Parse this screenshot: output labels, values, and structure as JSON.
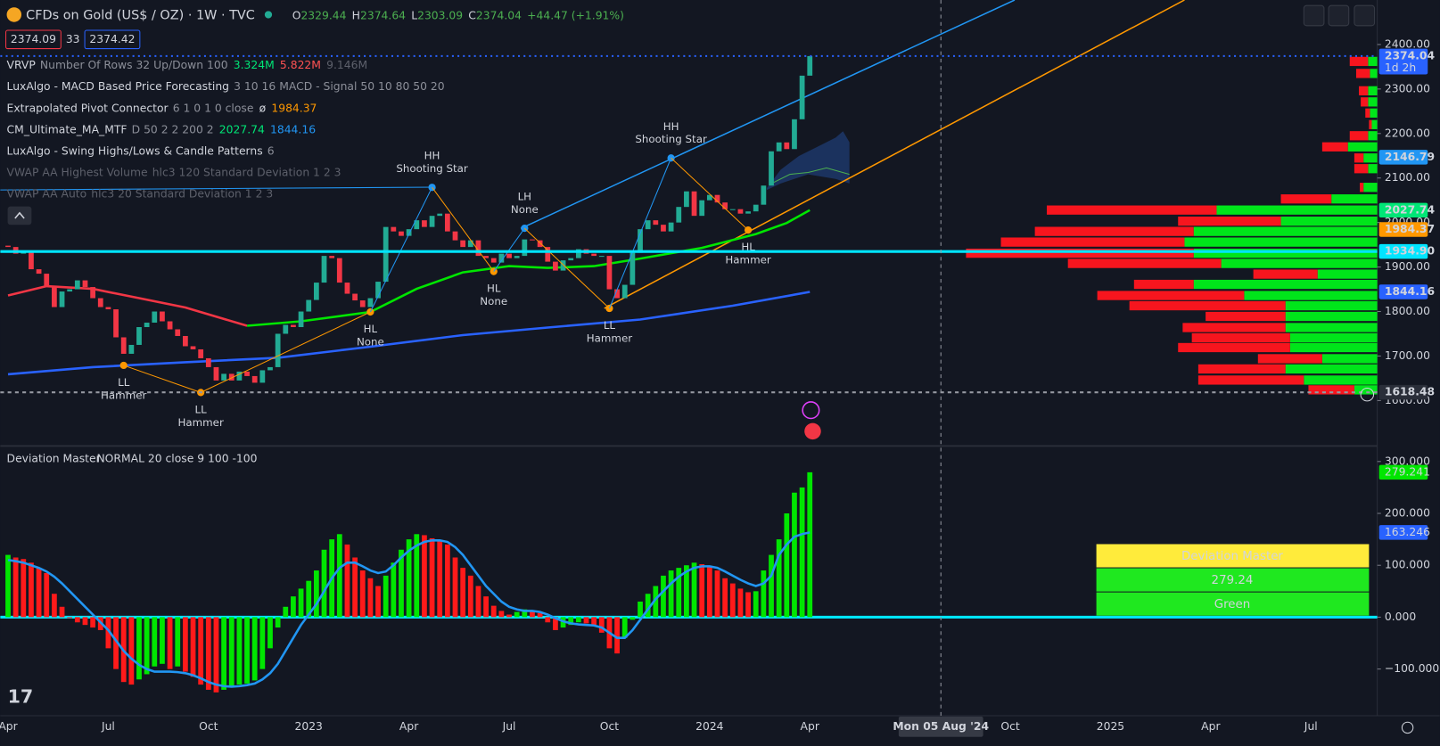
{
  "header": {
    "symbol": "CFDs on Gold (US$ / OZ) · 1W · TVC",
    "ohlc": [
      {
        "label": "O",
        "value": 2329.44
      },
      {
        "label": "H",
        "value": 2374.64
      },
      {
        "label": "L",
        "value": 2303.09
      },
      {
        "label": "C",
        "value": 2374.04
      }
    ],
    "change": "+44.47 (+1.91%)",
    "sell": 2374.09,
    "spread": 33,
    "buy": 2374.42
  },
  "legends": [
    {
      "name": "VRVP",
      "params": "Number Of Rows 32 Up/Down 100",
      "values": [
        {
          "text": "3.324M",
          "color": "#00e676"
        },
        {
          "text": "5.822M",
          "color": "#ff5252"
        },
        {
          "text": "9.146M",
          "color": "#5d606b"
        }
      ]
    },
    {
      "name": "LuxAlgo - MACD Based Price Forecasting",
      "params": "3 10 16 MACD - Signal 50 10 80 50 20",
      "values": []
    },
    {
      "name": "Extrapolated Pivot Connector",
      "params": "6 1 0 1 0 close",
      "values": [
        {
          "text": "ø",
          "color": "#d1d4dc"
        },
        {
          "text": "1984.37",
          "color": "#ff9800"
        }
      ]
    },
    {
      "name": "CM_Ultimate_MA_MTF",
      "params": "D 50 2 2 200 2",
      "values": [
        {
          "text": "2027.74",
          "color": "#00e676"
        },
        {
          "text": "1844.16",
          "color": "#2196f3"
        }
      ]
    },
    {
      "name": "LuxAlgo - Swing Highs/Lows & Candle Patterns",
      "params": "6",
      "values": []
    },
    {
      "name": "VWAP AA Highest Volume",
      "params": "hlc3 120 Standard Deviation 1 2 3",
      "values": [],
      "dimmed": true
    },
    {
      "name": "VWAP AA Auto",
      "params": "hlc3 20 Standard Deviation 1 2 3",
      "values": [],
      "dimmed": true
    }
  ],
  "price_chart": {
    "type": "candlestick",
    "ylim": [
      1500,
      2500
    ],
    "yticks": [
      {
        "value": 2400,
        "label": "2400.00"
      },
      {
        "value": 2300,
        "label": "2300.00"
      },
      {
        "value": 2200,
        "label": "2200.00"
      },
      {
        "value": 2100,
        "label": "2100.00"
      },
      {
        "value": 2000,
        "label": "2000.00"
      },
      {
        "value": 1900,
        "label": "1900.00"
      },
      {
        "value": 1800,
        "label": "1800.00"
      },
      {
        "value": 1700,
        "label": "1700.00"
      },
      {
        "value": 1600,
        "label": "1600.00"
      }
    ],
    "up_color": "#22ab94",
    "down_color": "#f23645",
    "first_open": 1948,
    "closes": [
      1945,
      1930,
      1935,
      1895,
      1885,
      1858,
      1810,
      1845,
      1850,
      1870,
      1855,
      1830,
      1810,
      1805,
      1742,
      1705,
      1725,
      1765,
      1775,
      1800,
      1778,
      1760,
      1745,
      1722,
      1715,
      1695,
      1675,
      1645,
      1660,
      1645,
      1665,
      1655,
      1640,
      1668,
      1675,
      1750,
      1770,
      1765,
      1800,
      1826,
      1865,
      1925,
      1920,
      1865,
      1840,
      1825,
      1810,
      1830,
      1867,
      1990,
      1980,
      1970,
      1985,
      2005,
      1990,
      2015,
      2020,
      1980,
      1960,
      1945,
      1960,
      1925,
      1920,
      1910,
      1930,
      1920,
      1925,
      1962,
      1960,
      1945,
      1912,
      1892,
      1915,
      1920,
      1940,
      1930,
      1925,
      1925,
      1850,
      1830,
      1860,
      1932,
      1985,
      2005,
      1995,
      1980,
      2000,
      2035,
      2070,
      2015,
      2050,
      2062,
      2045,
      2030,
      2030,
      2020,
      2025,
      2040,
      2083,
      2160,
      2180,
      2165,
      2232,
      2330,
      2374
    ],
    "ma_lines": [
      {
        "color": "#f23645",
        "x": [
          0,
          5,
          11,
          17,
          23,
          31
        ],
        "values": [
          1836,
          1857,
          1851,
          1830,
          1809,
          1768
        ]
      },
      {
        "color": "#00e600",
        "x": [
          31,
          38,
          47,
          53,
          59,
          65,
          70,
          76,
          82,
          90,
          97,
          101,
          104
        ],
        "values": [
          1768,
          1778,
          1799,
          1851,
          1888,
          1902,
          1898,
          1902,
          1919,
          1943,
          1974,
          1999,
          2027.74
        ]
      },
      {
        "color": "#2962ff",
        "x": [
          0,
          11,
          23,
          35,
          47,
          59,
          70,
          82,
          94,
          104
        ],
        "values": [
          1659,
          1675,
          1686,
          1696,
          1721,
          1747,
          1764,
          1782,
          1813,
          1844.16
        ]
      }
    ],
    "pivots": [
      {
        "x": 15,
        "value": 1679,
        "label": "LL",
        "pattern": "Hammer",
        "position": "below",
        "color": "#ff9800",
        "text_color": "#ffffff"
      },
      {
        "x": 25,
        "value": 1618,
        "label": "LL",
        "pattern": "Hammer",
        "position": "below",
        "color": "#ff9800",
        "text_color": "#ffffff"
      },
      {
        "x": 47,
        "value": 1799,
        "label": "HL",
        "pattern": "None",
        "position": "below",
        "color": "#ff9800",
        "text_color": "#ffffff"
      },
      {
        "x": 55,
        "value": 2079,
        "label": "HH",
        "pattern": "Shooting Star",
        "position": "above",
        "color": "#2196f3",
        "text_color": "#ffd54f"
      },
      {
        "x": 63,
        "value": 1890,
        "label": "HL",
        "pattern": "None",
        "position": "below",
        "color": "#ff9800",
        "text_color": "#ffffff"
      },
      {
        "x": 67,
        "value": 1987,
        "label": "LH",
        "pattern": "None",
        "position": "above",
        "color": "#2196f3",
        "text_color": "#ffd54f"
      },
      {
        "x": 78,
        "value": 1807,
        "label": "LL",
        "pattern": "Hammer",
        "position": "below",
        "color": "#ff9800",
        "text_color": "#ffffff"
      },
      {
        "x": 86,
        "value": 2145,
        "label": "HH",
        "pattern": "Shooting Star",
        "position": "above",
        "color": "#2196f3",
        "text_color": "#ffd54f"
      },
      {
        "x": 96,
        "value": 1983,
        "label": "HL",
        "pattern": "Hammer",
        "position": "below",
        "color": "#ff9800",
        "text_color": "#ffffff"
      }
    ],
    "price_tags": [
      {
        "value": 2374.04,
        "label": "2374.04",
        "sub": "1d 2h",
        "color": "#2962ff",
        "text_color": "#ffffff",
        "line": "dotted"
      },
      {
        "value": 2146.79,
        "label": "2146.79",
        "color": "#2196f3",
        "text_color": "#ffffff"
      },
      {
        "value": 2027.74,
        "label": "2027.74",
        "color": "#00e676",
        "text_color": "#131722"
      },
      {
        "value": 1984.37,
        "label": "1984.37",
        "color": "#ff9800",
        "text_color": "#131722"
      },
      {
        "value": 1934.9,
        "label": "1934.90",
        "color": "#00e5ff",
        "text_color": "#131722",
        "line": "solid"
      },
      {
        "value": 1844.16,
        "label": "1844.16",
        "color": "#2962ff",
        "text_color": "#ffffff"
      },
      {
        "value": 1618.48,
        "label": "1618.48",
        "color": "#2a2e39",
        "text_color": "#ffffff",
        "line": "dashed"
      }
    ],
    "volume_profile": {
      "up_color": "#00e51a",
      "down_color": "#f7151e",
      "rows": [
        {
          "value": 2362,
          "up": 10,
          "down": 20
        },
        {
          "value": 2335,
          "up": 8,
          "down": 15
        },
        {
          "value": 2296,
          "up": 10,
          "down": 10
        },
        {
          "value": 2271,
          "up": 10,
          "down": 8
        },
        {
          "value": 2246,
          "up": 8,
          "down": 5
        },
        {
          "value": 2220,
          "up": 6,
          "down": 3
        },
        {
          "value": 2195,
          "up": 10,
          "down": 20
        },
        {
          "value": 2170,
          "up": 32,
          "down": 28
        },
        {
          "value": 2145,
          "up": 15,
          "down": 10
        },
        {
          "value": 2121,
          "up": 10,
          "down": 15
        },
        {
          "value": 2079,
          "up": 15,
          "down": 4
        },
        {
          "value": 2053,
          "up": 50,
          "down": 55
        },
        {
          "value": 2028,
          "up": 175,
          "down": 185
        },
        {
          "value": 2003,
          "up": 105,
          "down": 112
        },
        {
          "value": 1980,
          "up": 200,
          "down": 173
        },
        {
          "value": 1956,
          "up": 210,
          "down": 200
        },
        {
          "value": 1931,
          "up": 200,
          "down": 248
        },
        {
          "value": 1908,
          "up": 170,
          "down": 167
        },
        {
          "value": 1884,
          "up": 65,
          "down": 70
        },
        {
          "value": 1861,
          "up": 200,
          "down": 65
        },
        {
          "value": 1836,
          "up": 145,
          "down": 160
        },
        {
          "value": 1813,
          "up": 100,
          "down": 170
        },
        {
          "value": 1789,
          "up": 100,
          "down": 87
        },
        {
          "value": 1764,
          "up": 100,
          "down": 112
        },
        {
          "value": 1741,
          "up": 95,
          "down": 107
        },
        {
          "value": 1719,
          "up": 95,
          "down": 122
        },
        {
          "value": 1694,
          "up": 60,
          "down": 70
        },
        {
          "value": 1671,
          "up": 100,
          "down": 95
        },
        {
          "value": 1646,
          "up": 80,
          "down": 115
        },
        {
          "value": 1624,
          "up": 25,
          "down": 50
        }
      ]
    }
  },
  "time_axis": {
    "xlim": [
      -1,
      177.6
    ],
    "ticks": [
      {
        "value": 0,
        "label": "Apr"
      },
      {
        "value": 13,
        "label": "Jul"
      },
      {
        "value": 26,
        "label": "Oct"
      },
      {
        "value": 39,
        "label": "2023"
      },
      {
        "value": 52,
        "label": "Apr"
      },
      {
        "value": 65,
        "label": "Jul"
      },
      {
        "value": 78,
        "label": "Oct"
      },
      {
        "value": 91,
        "label": "2024"
      },
      {
        "value": 104,
        "label": "Apr"
      },
      {
        "value": 130,
        "label": "Oct"
      },
      {
        "value": 143,
        "label": "2025"
      },
      {
        "value": 156,
        "label": "Apr"
      },
      {
        "value": 169,
        "label": "Jul"
      }
    ],
    "crosshair": {
      "value": 121,
      "label": "Mon 05 Aug '24"
    }
  },
  "deviation_chart": {
    "type": "histogram",
    "title": "Deviation Master",
    "params": "NORMAL 20 close 9 100 -100",
    "ylim": [
      -190,
      330
    ],
    "yticks": [
      {
        "value": 300,
        "label": "300.000"
      },
      {
        "value": 200,
        "label": "200.000"
      },
      {
        "value": 100,
        "label": "100.000"
      },
      {
        "value": 0,
        "label": "0.000"
      },
      {
        "value": -100,
        "label": "−100.000"
      }
    ],
    "up_color": "#00e600",
    "down_color": "#ff1a1a",
    "signal_color": "#2196f3",
    "zero_color": "#00e5ff",
    "values": [
      120,
      115,
      112,
      105,
      95,
      85,
      45,
      20,
      0,
      -10,
      -15,
      -20,
      -25,
      -60,
      -100,
      -125,
      -130,
      -120,
      -110,
      -95,
      -90,
      -100,
      -95,
      -105,
      -115,
      -130,
      -140,
      -145,
      -140,
      -135,
      -130,
      -128,
      -122,
      -100,
      -60,
      -20,
      20,
      40,
      55,
      70,
      90,
      130,
      150,
      160,
      140,
      115,
      90,
      75,
      60,
      80,
      105,
      130,
      150,
      160,
      158,
      152,
      148,
      140,
      115,
      95,
      80,
      60,
      40,
      22,
      12,
      5,
      10,
      15,
      12,
      8,
      -10,
      -25,
      -20,
      -15,
      -10,
      -12,
      -15,
      -30,
      -60,
      -70,
      -40,
      -5,
      30,
      45,
      60,
      80,
      90,
      95,
      100,
      105,
      102,
      98,
      90,
      75,
      65,
      55,
      48,
      50,
      90,
      120,
      150,
      200,
      240,
      250,
      279.241
    ],
    "signal": [
      110,
      108,
      105,
      100,
      95,
      88,
      78,
      65,
      50,
      35,
      20,
      5,
      -10,
      -25,
      -45,
      -65,
      -80,
      -92,
      -100,
      -105,
      -105,
      -105,
      -106,
      -108,
      -112,
      -118,
      -125,
      -130,
      -133,
      -134,
      -133,
      -131,
      -128,
      -120,
      -108,
      -90,
      -65,
      -40,
      -15,
      5,
      25,
      50,
      75,
      95,
      105,
      105,
      98,
      90,
      85,
      88,
      100,
      115,
      128,
      138,
      145,
      148,
      148,
      145,
      135,
      120,
      100,
      80,
      60,
      45,
      30,
      20,
      15,
      12,
      12,
      10,
      5,
      -2,
      -8,
      -12,
      -14,
      -15,
      -16,
      -20,
      -30,
      -40,
      -40,
      -25,
      -5,
      15,
      35,
      50,
      65,
      78,
      88,
      95,
      98,
      98,
      95,
      88,
      80,
      72,
      65,
      60,
      65,
      80,
      120,
      140,
      155,
      160,
      163.246
    ],
    "tags": [
      {
        "value": 279.241,
        "label": "279.241",
        "color": "#00e600",
        "text_color": "#131722"
      },
      {
        "value": 163.246,
        "label": "163.246",
        "color": "#2962ff",
        "text_color": "#ffffff"
      }
    ],
    "table": {
      "rows": [
        {
          "text": "Deviation Master",
          "color": "#ffeb3b"
        },
        {
          "text": "279.24",
          "color": "#1fe81f"
        },
        {
          "text": "Green",
          "color": "#1fe81f"
        }
      ]
    }
  }
}
